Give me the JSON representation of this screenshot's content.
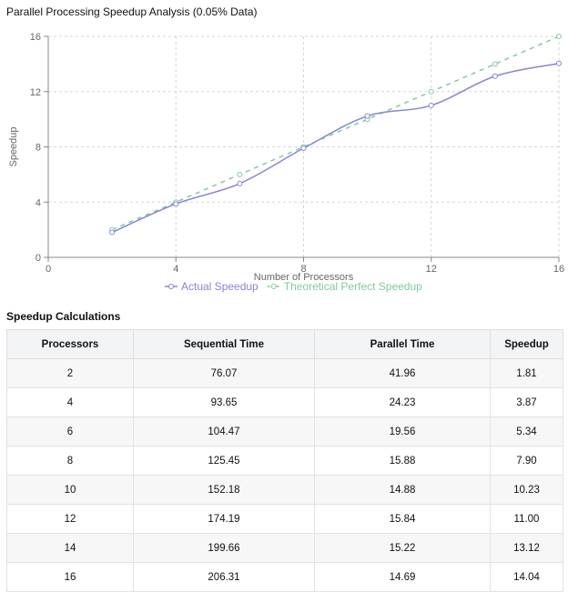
{
  "page": {
    "title": "Parallel Processing Speedup Analysis (0.05% Data)"
  },
  "chart_data": {
    "type": "line",
    "title": "Parallel Processing Speedup Analysis (0.05% Data)",
    "xlabel": "Number of Processors",
    "ylabel": "Speedup",
    "xlim": [
      0,
      16
    ],
    "ylim": [
      0,
      16
    ],
    "xticks": [
      0,
      4,
      8,
      12,
      16
    ],
    "yticks": [
      0,
      4,
      8,
      12,
      16
    ],
    "grid": true,
    "legend": "bottom",
    "series": [
      {
        "name": "Actual Speedup",
        "color": "#8884d8",
        "style": "solid",
        "x": [
          2,
          4,
          6,
          8,
          10,
          12,
          14,
          16
        ],
        "y": [
          1.81,
          3.87,
          5.34,
          7.9,
          10.23,
          11.0,
          13.12,
          14.04
        ]
      },
      {
        "name": "Theoretical Perfect Speedup",
        "color": "#82ca9d",
        "style": "dashed",
        "x": [
          2,
          4,
          6,
          8,
          10,
          12,
          14,
          16
        ],
        "y": [
          2,
          4,
          6,
          8,
          10,
          12,
          14,
          16
        ]
      }
    ]
  },
  "table": {
    "title": "Speedup Calculations",
    "headers": [
      "Processors",
      "Sequential Time",
      "Parallel Time",
      "Speedup"
    ],
    "rows": [
      [
        "2",
        "76.07",
        "41.96",
        "1.81"
      ],
      [
        "4",
        "93.65",
        "24.23",
        "3.87"
      ],
      [
        "6",
        "104.47",
        "19.56",
        "5.34"
      ],
      [
        "8",
        "125.45",
        "15.88",
        "7.90"
      ],
      [
        "10",
        "152.18",
        "14.88",
        "10.23"
      ],
      [
        "12",
        "174.19",
        "15.84",
        "11.00"
      ],
      [
        "14",
        "199.66",
        "15.22",
        "13.12"
      ],
      [
        "16",
        "206.31",
        "14.69",
        "14.04"
      ]
    ]
  }
}
